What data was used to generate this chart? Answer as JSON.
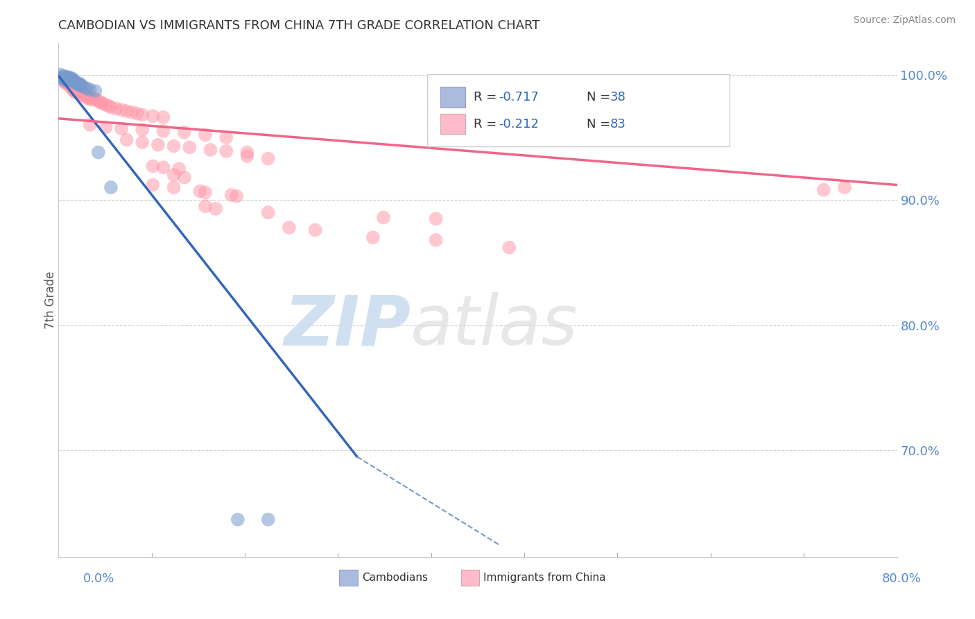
{
  "title": "CAMBODIAN VS IMMIGRANTS FROM CHINA 7TH GRADE CORRELATION CHART",
  "source": "Source: ZipAtlas.com",
  "ylabel": "7th Grade",
  "ylabel_right_ticks": [
    "70.0%",
    "80.0%",
    "90.0%",
    "100.0%"
  ],
  "ylabel_right_vals": [
    0.7,
    0.8,
    0.9,
    1.0
  ],
  "xmin": 0.0,
  "xmax": 0.8,
  "ymin": 0.615,
  "ymax": 1.025,
  "legend_r1": "R = -0.717",
  "legend_n1": "N = 38",
  "legend_r2": "R = -0.212",
  "legend_n2": "N = 83",
  "blue_color": "#7799CC",
  "pink_color": "#FF99AA",
  "blue_fill": "#AABBDD",
  "pink_fill": "#FFBBCC",
  "blue_scatter": [
    [
      0.002,
      1.0
    ],
    [
      0.003,
      0.998
    ],
    [
      0.004,
      0.997
    ],
    [
      0.005,
      0.999
    ],
    [
      0.006,
      0.997
    ],
    [
      0.006,
      0.996
    ],
    [
      0.007,
      0.998
    ],
    [
      0.007,
      0.997
    ],
    [
      0.008,
      0.998
    ],
    [
      0.008,
      0.997
    ],
    [
      0.008,
      0.996
    ],
    [
      0.009,
      0.997
    ],
    [
      0.009,
      0.996
    ],
    [
      0.01,
      0.998
    ],
    [
      0.01,
      0.997
    ],
    [
      0.01,
      0.996
    ],
    [
      0.011,
      0.997
    ],
    [
      0.012,
      0.996
    ],
    [
      0.012,
      0.995
    ],
    [
      0.013,
      0.997
    ],
    [
      0.014,
      0.996
    ],
    [
      0.015,
      0.995
    ],
    [
      0.016,
      0.994
    ],
    [
      0.017,
      0.993
    ],
    [
      0.018,
      0.993
    ],
    [
      0.019,
      0.992
    ],
    [
      0.02,
      0.993
    ],
    [
      0.021,
      0.992
    ],
    [
      0.022,
      0.991
    ],
    [
      0.024,
      0.99
    ],
    [
      0.027,
      0.989
    ],
    [
      0.03,
      0.988
    ],
    [
      0.035,
      0.987
    ],
    [
      0.038,
      0.938
    ],
    [
      0.05,
      0.91
    ],
    [
      0.171,
      0.645
    ],
    [
      0.2,
      0.645
    ],
    [
      0.008,
      0.995
    ]
  ],
  "pink_scatter": [
    [
      0.002,
      0.997
    ],
    [
      0.004,
      0.996
    ],
    [
      0.005,
      0.995
    ],
    [
      0.006,
      0.994
    ],
    [
      0.007,
      0.993
    ],
    [
      0.008,
      0.994
    ],
    [
      0.009,
      0.993
    ],
    [
      0.01,
      0.992
    ],
    [
      0.011,
      0.991
    ],
    [
      0.012,
      0.99
    ],
    [
      0.013,
      0.989
    ],
    [
      0.014,
      0.988
    ],
    [
      0.015,
      0.987
    ],
    [
      0.016,
      0.986
    ],
    [
      0.017,
      0.988
    ],
    [
      0.018,
      0.987
    ],
    [
      0.019,
      0.986
    ],
    [
      0.02,
      0.985
    ],
    [
      0.022,
      0.984
    ],
    [
      0.023,
      0.985
    ],
    [
      0.024,
      0.984
    ],
    [
      0.025,
      0.983
    ],
    [
      0.027,
      0.982
    ],
    [
      0.028,
      0.981
    ],
    [
      0.03,
      0.981
    ],
    [
      0.032,
      0.98
    ],
    [
      0.034,
      0.981
    ],
    [
      0.036,
      0.98
    ],
    [
      0.038,
      0.979
    ],
    [
      0.04,
      0.978
    ],
    [
      0.042,
      0.977
    ],
    [
      0.045,
      0.976
    ],
    [
      0.048,
      0.975
    ],
    [
      0.05,
      0.974
    ],
    [
      0.055,
      0.973
    ],
    [
      0.06,
      0.972
    ],
    [
      0.065,
      0.971
    ],
    [
      0.07,
      0.97
    ],
    [
      0.075,
      0.969
    ],
    [
      0.08,
      0.968
    ],
    [
      0.09,
      0.967
    ],
    [
      0.1,
      0.966
    ],
    [
      0.03,
      0.96
    ],
    [
      0.045,
      0.958
    ],
    [
      0.06,
      0.957
    ],
    [
      0.08,
      0.956
    ],
    [
      0.1,
      0.955
    ],
    [
      0.12,
      0.954
    ],
    [
      0.14,
      0.952
    ],
    [
      0.16,
      0.95
    ],
    [
      0.065,
      0.948
    ],
    [
      0.08,
      0.946
    ],
    [
      0.095,
      0.944
    ],
    [
      0.11,
      0.943
    ],
    [
      0.125,
      0.942
    ],
    [
      0.145,
      0.94
    ],
    [
      0.16,
      0.939
    ],
    [
      0.18,
      0.938
    ],
    [
      0.18,
      0.935
    ],
    [
      0.2,
      0.933
    ],
    [
      0.09,
      0.927
    ],
    [
      0.1,
      0.926
    ],
    [
      0.115,
      0.925
    ],
    [
      0.11,
      0.92
    ],
    [
      0.12,
      0.918
    ],
    [
      0.09,
      0.912
    ],
    [
      0.11,
      0.91
    ],
    [
      0.135,
      0.907
    ],
    [
      0.14,
      0.906
    ],
    [
      0.165,
      0.904
    ],
    [
      0.17,
      0.903
    ],
    [
      0.14,
      0.895
    ],
    [
      0.15,
      0.893
    ],
    [
      0.2,
      0.89
    ],
    [
      0.31,
      0.886
    ],
    [
      0.36,
      0.885
    ],
    [
      0.22,
      0.878
    ],
    [
      0.245,
      0.876
    ],
    [
      0.3,
      0.87
    ],
    [
      0.36,
      0.868
    ],
    [
      0.43,
      0.862
    ],
    [
      0.75,
      0.91
    ],
    [
      0.73,
      0.908
    ]
  ],
  "blue_line_solid": [
    [
      0.0,
      0.999
    ],
    [
      0.285,
      0.695
    ]
  ],
  "blue_line_dashed": [
    [
      0.285,
      0.695
    ],
    [
      0.42,
      0.625
    ]
  ],
  "pink_line": [
    [
      0.0,
      0.965
    ],
    [
      0.8,
      0.912
    ]
  ],
  "dashed_line_y": 0.999,
  "title_color": "#333333",
  "grid_color": "#CCCCCC",
  "right_label_color": "#5588CC",
  "source_color": "#888888"
}
